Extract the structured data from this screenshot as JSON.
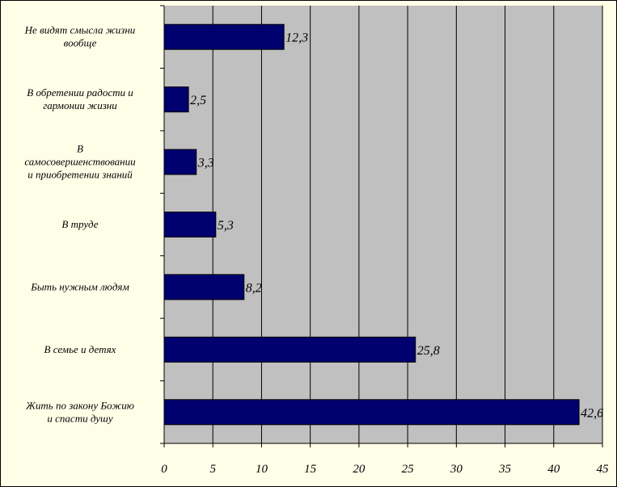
{
  "chart_data": {
    "type": "bar",
    "orientation": "horizontal",
    "categories": [
      [
        "Не видят смысла жизни",
        "вообще"
      ],
      [
        "В обретении радости и",
        "гармонии жизни"
      ],
      [
        "В",
        "самосовершенствовании",
        "и приобретении знаний"
      ],
      [
        "В труде"
      ],
      [
        "Быть нужным людям"
      ],
      [
        "В семье и детях"
      ],
      [
        "Жить по закону Божию",
        "и спасти душу"
      ]
    ],
    "values": [
      12.3,
      2.5,
      3.3,
      5.3,
      8.2,
      25.8,
      42.6
    ],
    "data_labels": [
      "12,3",
      "2,5",
      "3,3",
      "5,3",
      "8,2",
      "25,8",
      "42,6"
    ],
    "xlim": [
      0,
      45
    ],
    "x_ticks": [
      0,
      5,
      10,
      15,
      20,
      25,
      30,
      35,
      40,
      45
    ],
    "grid": "vertical",
    "colors": {
      "bar": "#00006e",
      "plot_background": "#c0c0c0",
      "chart_background": "#ffffe8",
      "grid": "#000000"
    }
  }
}
